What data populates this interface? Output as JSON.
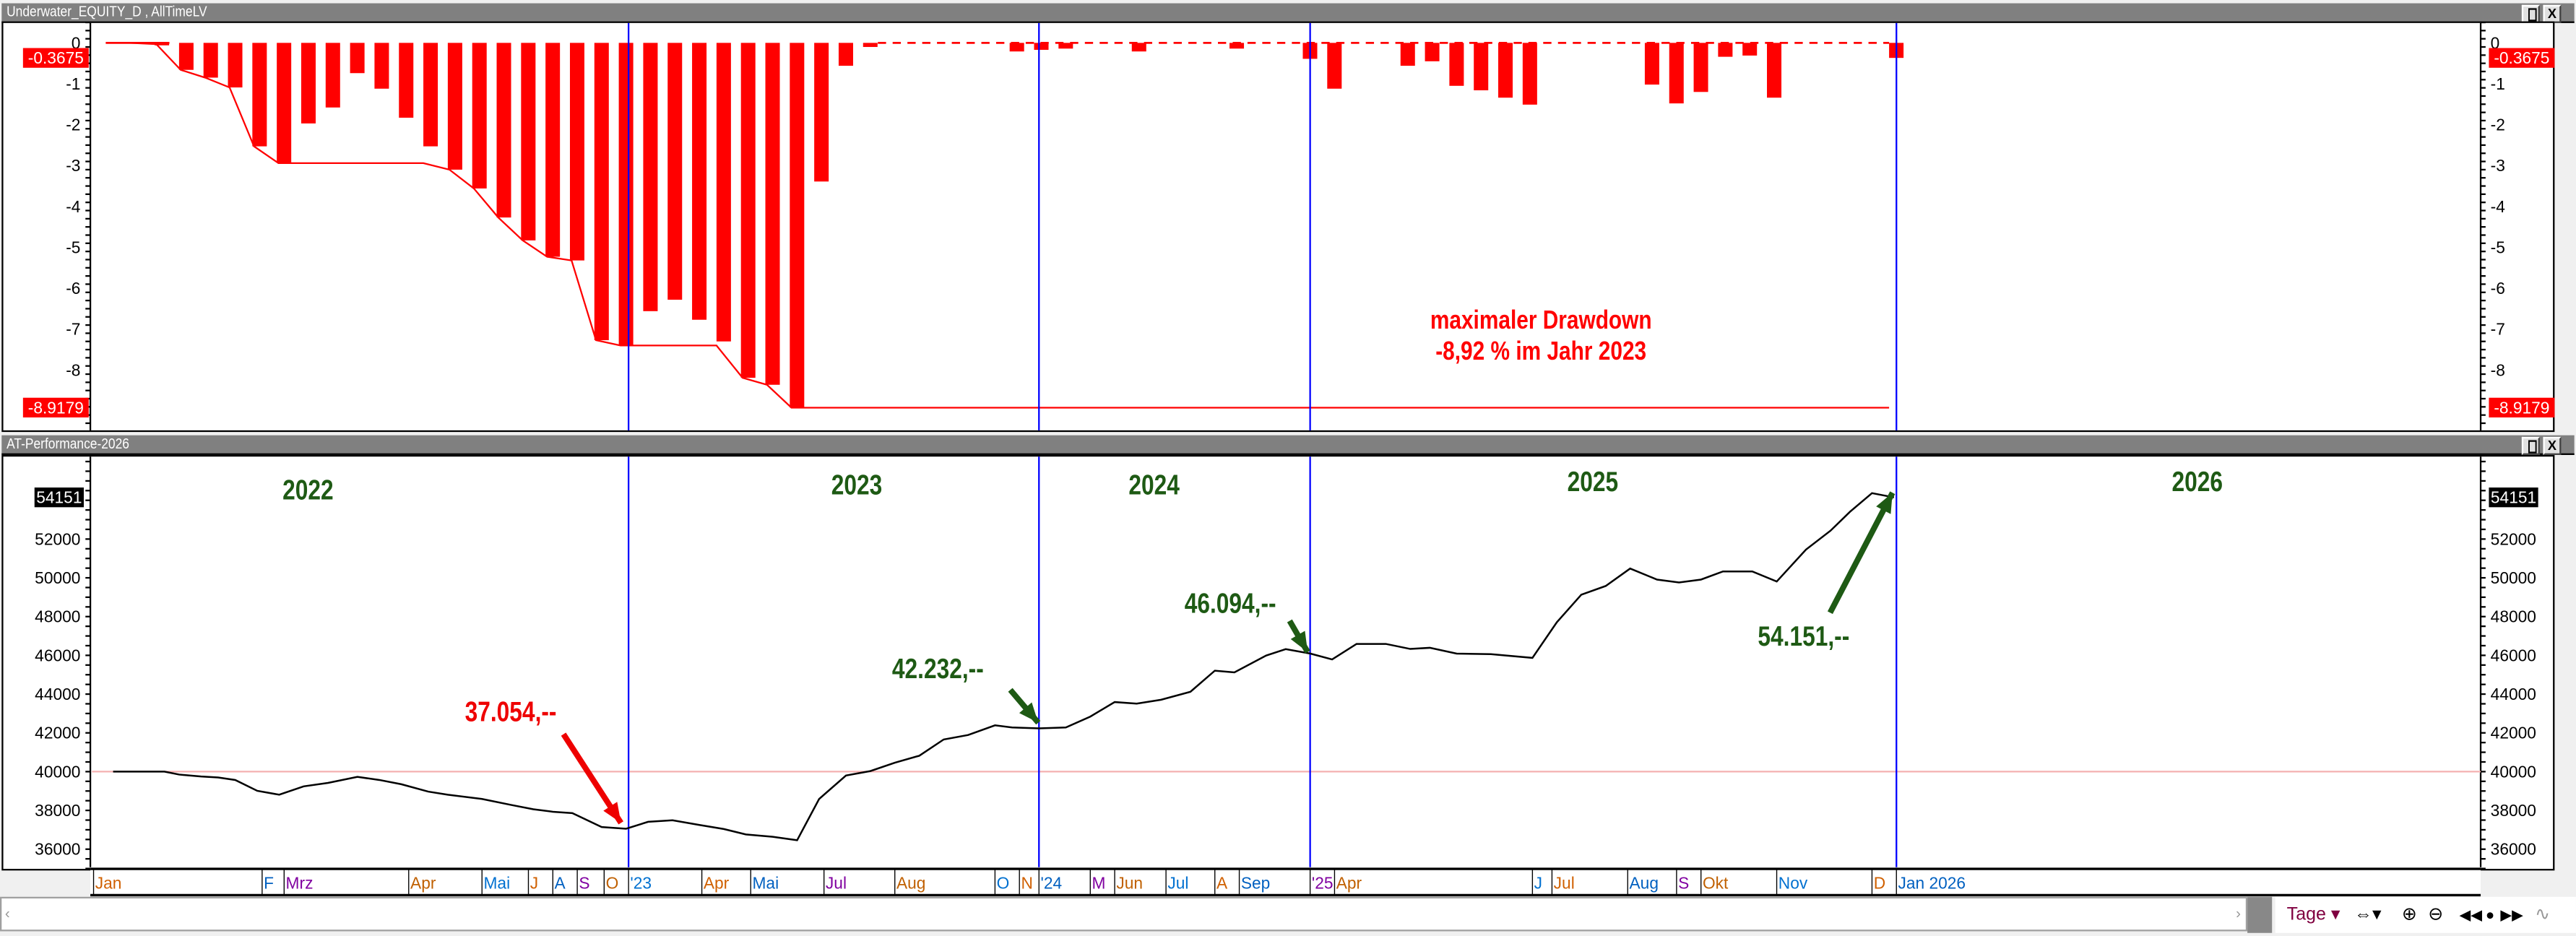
{
  "top_panel": {
    "title": "Underwater_EQUITY_D , AllTimeLV",
    "restore_icon": "restore-icon",
    "close_label": "X",
    "current_tag": "-0.3675",
    "min_tag": "-8.9179",
    "annotation_line1": "maximaler Drawdown",
    "annotation_line2": "-8,92 % im Jahr 2023"
  },
  "bottom_panel": {
    "title": "AT-Performance-2026",
    "close_label": "X",
    "last_tag": "54151",
    "years": [
      "2022",
      "2023",
      "2024",
      "2025",
      "2026"
    ],
    "callouts": {
      "low_2022": "37.054,--",
      "end_2023": "42.232,--",
      "end_2024": "46.094,--",
      "end_2025": "54.151,--"
    }
  },
  "toolbar": {
    "period_label": "Tage",
    "icons": [
      "scroll-horizontal-icon",
      "zoom-in-icon",
      "zoom-out-icon",
      "step-back-icon",
      "reset-icon",
      "step-forward-icon",
      "chart-style-icon"
    ]
  },
  "colors": {
    "drawdown": "#ff0000",
    "equity": "#000000",
    "year_separator": "#0000ff",
    "annotation_green": "#1e5a14",
    "annotation_red": "#ee0000",
    "baseline": "#f4b0b0"
  },
  "chart_data": [
    {
      "type": "bar",
      "name": "Underwater_EQUITY_D",
      "ylim": [
        -9.3,
        0.5
      ],
      "yticks": [
        0,
        -1,
        -2,
        -3,
        -4,
        -5,
        -6,
        -7,
        -8
      ],
      "period_start": -3,
      "values": [
        0,
        0,
        -0.03,
        -0.66,
        -0.85,
        -1.09,
        -2.53,
        -2.94,
        -1.97,
        -1.58,
        -0.74,
        -1.12,
        -1.83,
        -2.53,
        -3.1,
        -3.56,
        -4.27,
        -4.83,
        -5.23,
        -5.32,
        -7.27,
        -7.4,
        -6.56,
        -6.28,
        -6.77,
        -7.3,
        -8.19,
        -8.36,
        -8.92,
        -3.39,
        -0.56,
        -0.1,
        0,
        0,
        0,
        0,
        0,
        -0.21,
        -0.17,
        -0.14,
        0,
        0,
        -0.21,
        0,
        0,
        0,
        -0.14,
        0,
        0,
        -0.39,
        -1.12,
        0,
        0,
        -0.56,
        -0.45,
        -1.05,
        -1.16,
        -1.34,
        -1.51,
        0,
        0,
        0,
        0,
        -1.02,
        -1.48,
        -1.2,
        -0.34,
        -0.31,
        -1.34,
        0,
        0,
        0,
        0,
        -0.3675
      ],
      "max_drawdown_line": true,
      "current_value": -0.3675,
      "min_value": -8.9179
    },
    {
      "type": "line",
      "name": "AT-Performance-2026",
      "ylim": [
        35000,
        56100
      ],
      "yticks": [
        36000,
        38000,
        40000,
        42000,
        44000,
        46000,
        48000,
        50000,
        52000
      ],
      "reference_line": 40000,
      "last_value": 54151,
      "points": [
        [
          -2.7,
          40000
        ],
        [
          -0.6,
          40000
        ],
        [
          0,
          39850
        ],
        [
          0.9,
          39750
        ],
        [
          1.6,
          39700
        ],
        [
          2.3,
          39570
        ],
        [
          3.2,
          39010
        ],
        [
          4.1,
          38810
        ],
        [
          5.1,
          39240
        ],
        [
          6.1,
          39420
        ],
        [
          7.3,
          39730
        ],
        [
          8.2,
          39570
        ],
        [
          9.1,
          39350
        ],
        [
          10.2,
          38970
        ],
        [
          11.0,
          38810
        ],
        [
          12.4,
          38590
        ],
        [
          13.6,
          38280
        ],
        [
          14.5,
          38060
        ],
        [
          15.3,
          37930
        ],
        [
          16.1,
          37860
        ],
        [
          17.3,
          37140
        ],
        [
          18.3,
          37054
        ],
        [
          19.2,
          37410
        ],
        [
          20.2,
          37490
        ],
        [
          21.3,
          37250
        ],
        [
          22.3,
          37040
        ],
        [
          23.2,
          36760
        ],
        [
          24.3,
          36640
        ],
        [
          25.3,
          36460
        ],
        [
          26.2,
          38590
        ],
        [
          27.3,
          39800
        ],
        [
          28.3,
          40030
        ],
        [
          29.3,
          40460
        ],
        [
          30.3,
          40820
        ],
        [
          31.3,
          41660
        ],
        [
          32.3,
          41890
        ],
        [
          33.4,
          42390
        ],
        [
          34.1,
          42280
        ],
        [
          35.2,
          42232
        ],
        [
          36.3,
          42280
        ],
        [
          37.3,
          42840
        ],
        [
          38.3,
          43590
        ],
        [
          39.2,
          43510
        ],
        [
          40.2,
          43710
        ],
        [
          41.4,
          44120
        ],
        [
          42.4,
          45210
        ],
        [
          43.2,
          45120
        ],
        [
          44.5,
          45990
        ],
        [
          45.3,
          46320
        ],
        [
          46.3,
          46094
        ],
        [
          47.2,
          45790
        ],
        [
          48.2,
          46590
        ],
        [
          49.4,
          46590
        ],
        [
          50.4,
          46330
        ],
        [
          51.2,
          46390
        ],
        [
          52.3,
          46090
        ],
        [
          53.7,
          46060
        ],
        [
          55.4,
          45870
        ],
        [
          56.4,
          47710
        ],
        [
          57.4,
          49130
        ],
        [
          58.4,
          49580
        ],
        [
          59.4,
          50480
        ],
        [
          60.5,
          49910
        ],
        [
          61.4,
          49760
        ],
        [
          62.3,
          49910
        ],
        [
          63.2,
          50330
        ],
        [
          64.4,
          50330
        ],
        [
          65.4,
          49810
        ],
        [
          66.6,
          51460
        ],
        [
          67.6,
          52430
        ],
        [
          68.4,
          53410
        ],
        [
          69.3,
          54370
        ],
        [
          70.2,
          54151
        ]
      ],
      "year_separators": [
        18.4,
        35.2,
        46.3,
        70.3
      ],
      "x_ticks": [
        {
          "label": "Jan",
          "t": -3.5
        },
        {
          "label": "F",
          "t": 3.4
        },
        {
          "label": "Mrz",
          "t": 4.3
        },
        {
          "label": "Apr",
          "t": 9.4
        },
        {
          "label": "Mai",
          "t": 12.4
        },
        {
          "label": "J",
          "t": 14.3
        },
        {
          "label": "A",
          "t": 15.3
        },
        {
          "label": "S",
          "t": 16.3
        },
        {
          "label": "O",
          "t": 17.4
        },
        {
          "label": "'23",
          "t": 18.4
        },
        {
          "label": "Apr",
          "t": 21.4
        },
        {
          "label": "Mai",
          "t": 23.4
        },
        {
          "label": "Jul",
          "t": 26.4
        },
        {
          "label": "Aug",
          "t": 29.3
        },
        {
          "label": "O",
          "t": 33.4
        },
        {
          "label": "N",
          "t": 34.4
        },
        {
          "label": "'24",
          "t": 35.2
        },
        {
          "label": "M",
          "t": 37.3
        },
        {
          "label": "Jun",
          "t": 38.3
        },
        {
          "label": "Jul",
          "t": 40.4
        },
        {
          "label": "A",
          "t": 42.4
        },
        {
          "label": "Sep",
          "t": 43.4
        },
        {
          "label": "'25",
          "t": 46.3
        },
        {
          "label": "Apr",
          "t": 47.3
        },
        {
          "label": "J",
          "t": 55.4
        },
        {
          "label": "Jul",
          "t": 56.2
        },
        {
          "label": "Aug",
          "t": 59.3
        },
        {
          "label": "S",
          "t": 61.3
        },
        {
          "label": "Okt",
          "t": 62.3
        },
        {
          "label": "Nov",
          "t": 65.4
        },
        {
          "label": "D",
          "t": 69.3
        },
        {
          "label": "Jan 2026",
          "t": 70.3
        }
      ]
    }
  ]
}
